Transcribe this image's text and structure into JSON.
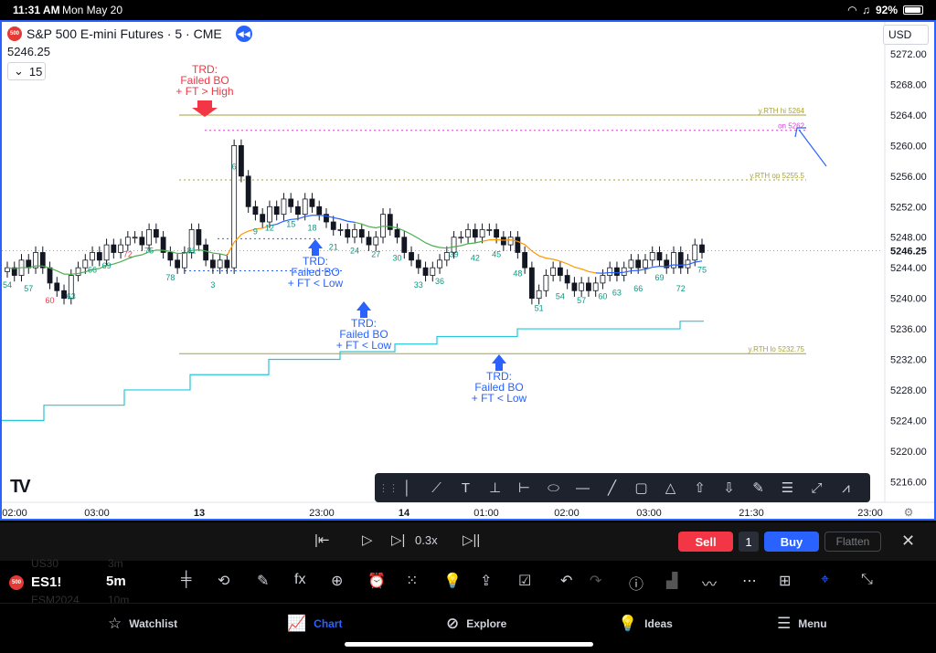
{
  "status_bar": {
    "time": "11:31 AM",
    "date": "Mon May 20",
    "battery": "92%"
  },
  "chart": {
    "symbol_badge": "500",
    "title": "S&P 500 E-mini Futures · 5 · CME",
    "last_price": "5246.25",
    "collapsed_count": "15",
    "currency": "USD",
    "accent_color": "#2962ff"
  },
  "chart_data": {
    "type": "candlestick",
    "y_axis": {
      "ylim": [
        5214,
        5275
      ],
      "ticks": [
        "5272.00",
        "5268.00",
        "5264.00",
        "5260.00",
        "5256.00",
        "5252.00",
        "5248.00",
        "5244.00",
        "5240.00",
        "5236.00",
        "5232.00",
        "5228.00",
        "5224.00",
        "5220.00",
        "5216.00"
      ],
      "current_price_label": "5246.25"
    },
    "x_axis": {
      "ticks": [
        "02:00",
        "03:00",
        "13",
        "23:00",
        "14",
        "01:00",
        "02:00",
        "03:00",
        "21:30",
        "23:00"
      ]
    },
    "reference_lines": [
      {
        "label": "y.RTH hi 5264",
        "value": 5264,
        "style": "solid",
        "color": "#a6a23a"
      },
      {
        "label": "on 5262",
        "value": 5262,
        "style": "dotted",
        "color": "#d53fd5"
      },
      {
        "label": "y.RTH op 5255.5",
        "value": 5255.5,
        "style": "dotted",
        "color": "#a6a23a"
      },
      {
        "label": "y.RTH lo 5232.75",
        "value": 5232.75,
        "style": "solid",
        "color": "#a6a23a"
      }
    ],
    "annotations": [
      {
        "text": [
          "TRD:",
          "Failed BO",
          "+ FT > High"
        ],
        "color": "#f23645"
      },
      {
        "text": [
          "TRD:",
          "Failed BO",
          "+ FT < Low"
        ],
        "color": "#2962ff"
      },
      {
        "text": [
          "TRD:",
          "Failed BO",
          "+ FT < Low"
        ],
        "color": "#2962ff"
      },
      {
        "text": [
          "TRD:",
          "Failed BO",
          "+ FT < Low"
        ],
        "color": "#2962ff"
      }
    ],
    "bar_numbers": [
      "54",
      "57",
      "60",
      "63",
      "66",
      "69",
      "72",
      "75",
      "78",
      "81",
      "3",
      "6",
      "9",
      "12",
      "15",
      "18",
      "21",
      "24",
      "27",
      "30",
      "33",
      "36",
      "39",
      "42",
      "45",
      "48",
      "51",
      "54",
      "57",
      "60",
      "63",
      "66",
      "69",
      "72",
      "75"
    ]
  },
  "draw_toolbar": {
    "tools": [
      "vertical-line-icon",
      "trend-line-icon",
      "text-icon",
      "price-range-icon",
      "date-range-icon",
      "ellipse-icon",
      "horizontal-ray-icon",
      "line-icon",
      "rectangle-icon",
      "triangle-pattern-icon",
      "arrow-up-icon",
      "arrow-down-icon",
      "brush-icon",
      "fib-retracement-icon",
      "path-icon",
      "polyline-icon"
    ]
  },
  "replay": {
    "speed": "0.3x",
    "sell": "Sell",
    "qty": "1",
    "buy": "Buy",
    "flatten": "Flatten"
  },
  "toolbar": {
    "symbol_badge": "500",
    "symbol": "ES1!",
    "interval": "5m",
    "ghost_1": "US30",
    "ghost_2": "3m",
    "ghost_3": "ESM2024",
    "ghost_4": "10m"
  },
  "tabs": [
    {
      "label": "Watchlist",
      "icon": "star-icon"
    },
    {
      "label": "Chart",
      "icon": "chart-icon",
      "active": true
    },
    {
      "label": "Explore",
      "icon": "compass-icon"
    },
    {
      "label": "Ideas",
      "icon": "lightbulb-icon"
    },
    {
      "label": "Menu",
      "icon": "hamburger-icon"
    }
  ]
}
